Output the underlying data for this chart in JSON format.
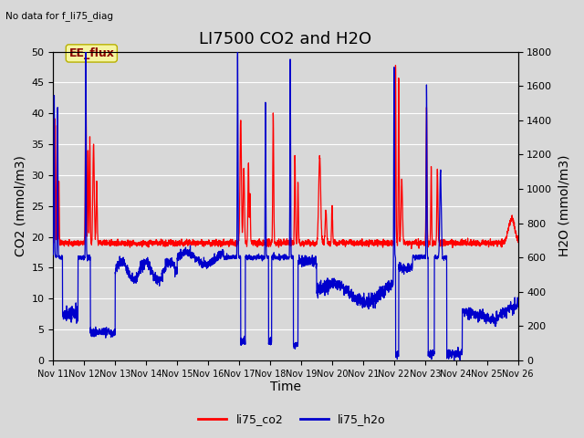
{
  "title": "LI7500 CO2 and H2O",
  "top_left_text": "No data for f_li75_diag",
  "xlabel": "Time",
  "ylabel_left": "CO2 (mmol/m3)",
  "ylabel_right": "H2O (mmol/m3)",
  "xlim": [
    0,
    15
  ],
  "ylim_left": [
    0,
    50
  ],
  "ylim_right": [
    0,
    1800
  ],
  "yticks_left": [
    0,
    5,
    10,
    15,
    20,
    25,
    30,
    35,
    40,
    45,
    50
  ],
  "yticks_right": [
    0,
    200,
    400,
    600,
    800,
    1000,
    1200,
    1400,
    1600,
    1800
  ],
  "xtick_labels": [
    "Nov 11",
    "Nov 12",
    "Nov 13",
    "Nov 14",
    "Nov 15",
    "Nov 16",
    "Nov 17",
    "Nov 18",
    "Nov 19",
    "Nov 20",
    "Nov 21",
    "Nov 22",
    "Nov 23",
    "Nov 24",
    "Nov 25",
    "Nov 26"
  ],
  "xtick_positions": [
    0,
    1,
    2,
    3,
    4,
    5,
    6,
    7,
    8,
    9,
    10,
    11,
    12,
    13,
    14,
    15
  ],
  "color_co2": "#ff0000",
  "color_h2o": "#0000cc",
  "legend_label_co2": "li75_co2",
  "legend_label_h2o": "li75_h2o",
  "annotation_text": "EE_flux",
  "bg_color": "#d8d8d8",
  "plot_bg_color": "#d8d8d8",
  "grid_color": "#ffffff",
  "title_fontsize": 13,
  "label_fontsize": 10,
  "tick_fontsize": 8,
  "legend_fontsize": 9,
  "linewidth": 0.9
}
